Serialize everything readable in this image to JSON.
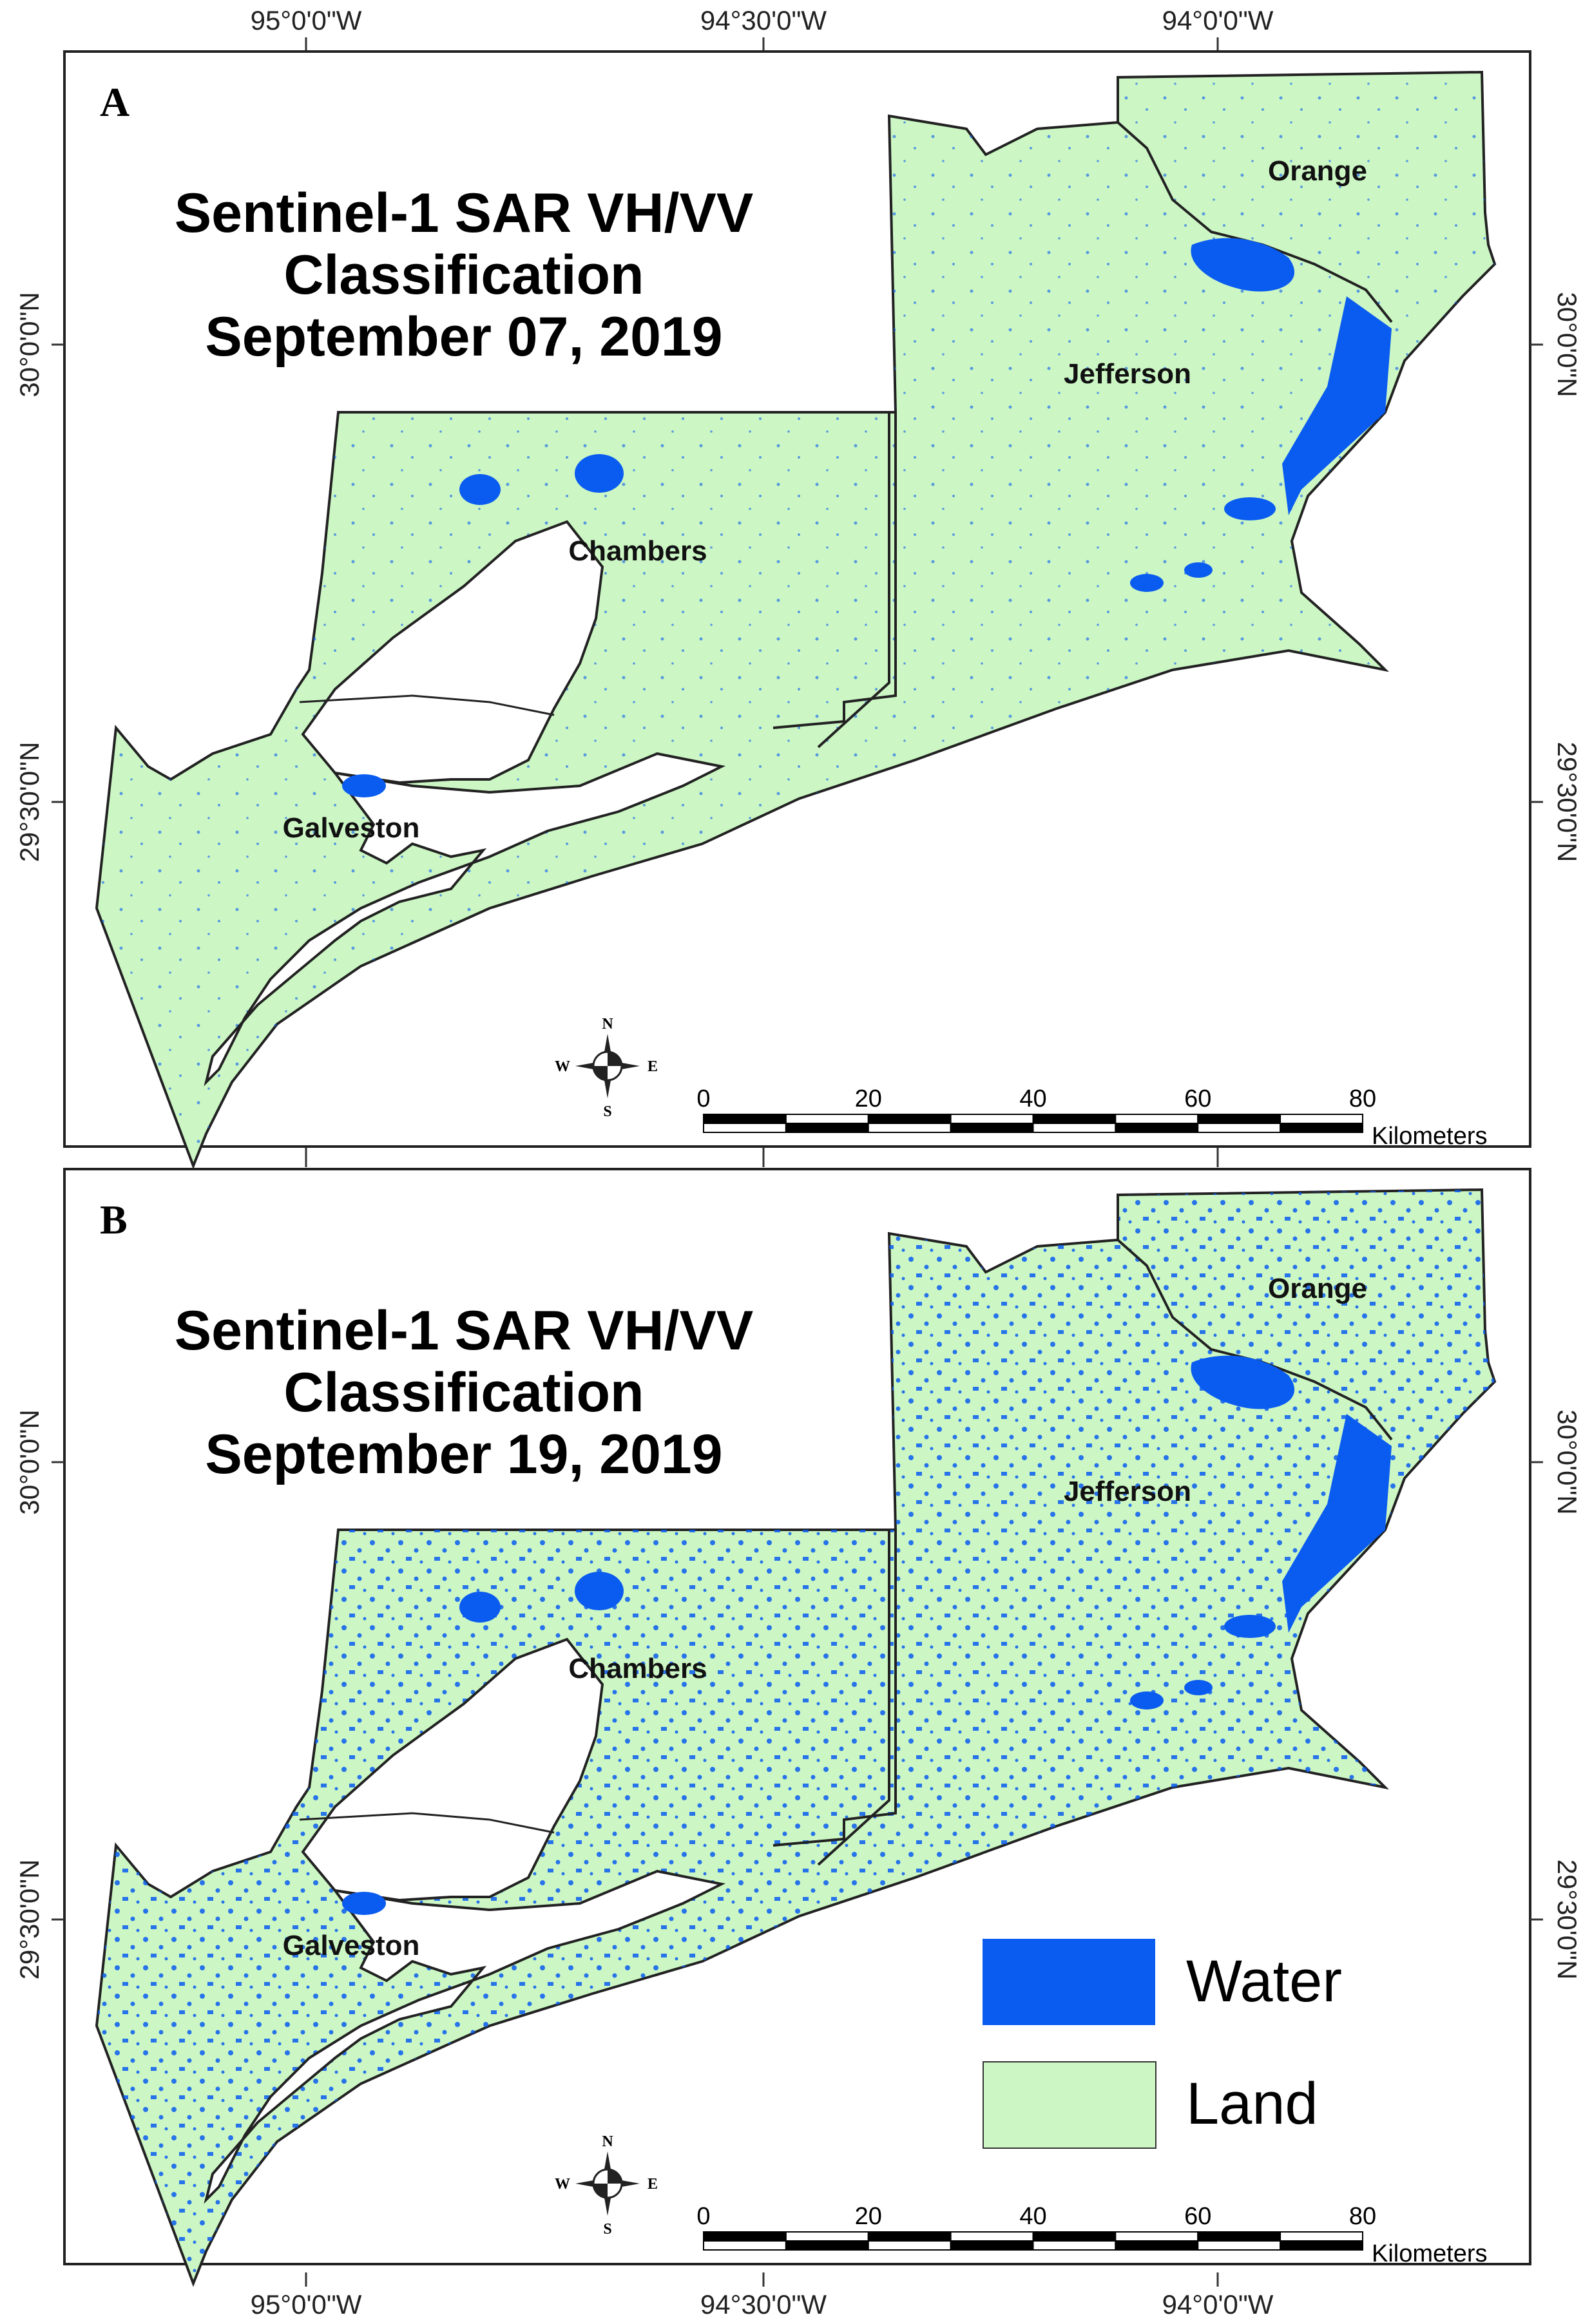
{
  "colors": {
    "water": "#0a5cf0",
    "land": "#ccf7c4",
    "outline": "#222222"
  },
  "top_longitudes": [
    "95°0'0\"W",
    "94°30'0\"W",
    "94°0'0\"W"
  ],
  "bottom_longitudes": [
    "95°0'0\"W",
    "94°30'0\"W",
    "94°0'0\"W"
  ],
  "latitudes": [
    "30°0'0\"N",
    "29°30'0\"N"
  ],
  "panels": [
    {
      "letter": "A",
      "title_lines": [
        "Sentinel-1 SAR VH/VV",
        "Classification",
        "September 07, 2019"
      ],
      "counties": [
        "Orange",
        "Jefferson",
        "Chambers",
        "Galveston"
      ]
    },
    {
      "letter": "B",
      "title_lines": [
        "Sentinel-1 SAR VH/VV",
        "Classification",
        "September 19, 2019"
      ],
      "counties": [
        "Orange",
        "Jefferson",
        "Chambers",
        "Galveston"
      ]
    }
  ],
  "scale_bar": {
    "ticks": [
      "0",
      "20",
      "40",
      "60",
      "80"
    ],
    "unit": "Kilometers"
  },
  "compass": {
    "n": "N",
    "s": "S",
    "e": "E",
    "w": "W"
  },
  "legend": {
    "items": [
      {
        "label": "Water",
        "class": "water"
      },
      {
        "label": "Land",
        "class": "land"
      }
    ]
  }
}
